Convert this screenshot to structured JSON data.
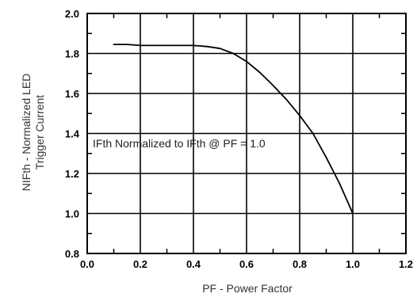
{
  "chart_data": {
    "type": "line",
    "title": "",
    "xlabel": "PF - Power Factor",
    "ylabel_lines": [
      "NIFth - Normalized LED",
      "Trigger Current"
    ],
    "xlim": [
      0.0,
      1.2
    ],
    "ylim": [
      0.8,
      2.0
    ],
    "x_ticks": [
      "0.0",
      "0.2",
      "0.4",
      "0.6",
      "0.8",
      "1.0",
      "1.2"
    ],
    "y_ticks": [
      "0.8",
      "1.0",
      "1.2",
      "1.4",
      "1.6",
      "1.8",
      "2.0"
    ],
    "grid": true,
    "annotation": "IFth Normalized to IFth @ PF = 1.0",
    "series": [
      {
        "color": "#000000",
        "x": [
          0.1,
          0.15,
          0.2,
          0.3,
          0.4,
          0.45,
          0.5,
          0.55,
          0.6,
          0.65,
          0.7,
          0.75,
          0.8,
          0.85,
          0.9,
          0.95,
          1.0
        ],
        "y": [
          1.845,
          1.845,
          1.84,
          1.84,
          1.84,
          1.835,
          1.825,
          1.8,
          1.76,
          1.705,
          1.64,
          1.57,
          1.49,
          1.4,
          1.28,
          1.15,
          1.0
        ]
      }
    ]
  }
}
